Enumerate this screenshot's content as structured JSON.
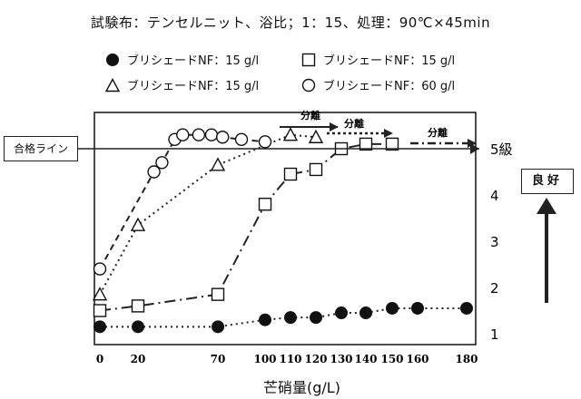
{
  "title": "試験布：テンセルニット、浴比；1：15、処理：90℃×45min",
  "legend": [
    {
      "marker": "filled-circle",
      "label": "ブリシェードNF：15 g/l"
    },
    {
      "marker": "open-square",
      "label": "ブリシェードNF：15 g/l"
    },
    {
      "marker": "open-triangle",
      "label": "ブリシェードNF：15 g/l"
    },
    {
      "marker": "open-circle",
      "label": "ブリシェードNF：60 g/l"
    }
  ],
  "pass_line_label": "合格ライン",
  "good_label": "良好",
  "separation_label": "分離",
  "chart_data": {
    "type": "line",
    "xlabel": "芒硝量(g/L)",
    "ylabel": "",
    "x_ticks": [
      "0",
      "20",
      "70",
      "100",
      "110",
      "120",
      "130",
      "140",
      "150",
      "160",
      "180"
    ],
    "y_ticks": [
      "1",
      "2",
      "3",
      "4",
      "5級"
    ],
    "ylim": [
      1,
      5.2
    ],
    "pass_line": 5,
    "grid": false,
    "legend_position": "top",
    "series": [
      {
        "name": "ブリシェードNF：15 g/l",
        "marker": "filled-circle",
        "line": "dotted",
        "x": [
          0,
          20,
          70,
          100,
          110,
          120,
          130,
          140,
          150,
          160,
          180
        ],
        "y": [
          1.15,
          1.15,
          1.15,
          1.3,
          1.35,
          1.35,
          1.45,
          1.45,
          1.55,
          1.55,
          1.55
        ]
      },
      {
        "name": "ブリシェードNF：15 g/l",
        "marker": "open-square",
        "line": "dash-dot",
        "x": [
          0,
          20,
          70,
          100,
          110,
          120,
          130,
          140,
          150
        ],
        "y": [
          1.5,
          1.6,
          1.85,
          3.8,
          4.45,
          4.55,
          5.0,
          5.1,
          5.1
        ]
      },
      {
        "name": "ブリシェードNF：15 g/l",
        "marker": "open-triangle",
        "line": "dotted",
        "x": [
          0,
          20,
          70,
          110,
          120
        ],
        "y": [
          1.85,
          3.35,
          4.65,
          5.3,
          5.25
        ]
      },
      {
        "name": "ブリシェードNF：60 g/l",
        "marker": "open-circle",
        "line": "dashed",
        "x": [
          0,
          30,
          35,
          43,
          48,
          58,
          66,
          73,
          85,
          100
        ],
        "y": [
          2.4,
          4.5,
          4.7,
          5.2,
          5.3,
          5.3,
          5.3,
          5.25,
          5.2,
          5.15
        ]
      }
    ],
    "annotations": [
      {
        "text": "分離",
        "series": "open-circle"
      },
      {
        "text": "分離",
        "series": "open-triangle"
      },
      {
        "text": "分離",
        "series": "open-square"
      }
    ]
  }
}
